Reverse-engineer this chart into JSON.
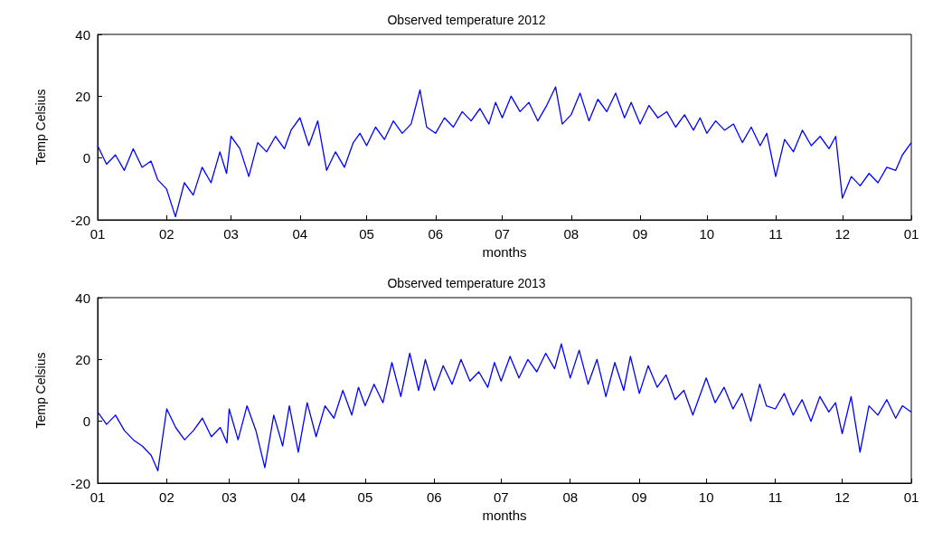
{
  "chart_data": [
    {
      "type": "line",
      "title": "Observed temperature 2012",
      "xlabel": "months",
      "ylabel": "Temp Celsius",
      "color": "#0000ff",
      "grid": false,
      "x": [
        "2012-01-01",
        "2012-01-05",
        "2012-01-09",
        "2012-01-13",
        "2012-01-17",
        "2012-01-21",
        "2012-01-25",
        "2012-01-28",
        "2012-02-01",
        "2012-02-05",
        "2012-02-09",
        "2012-02-13",
        "2012-02-17",
        "2012-02-21",
        "2012-02-25",
        "2012-02-28",
        "2012-03-01",
        "2012-03-05",
        "2012-03-09",
        "2012-03-13",
        "2012-03-17",
        "2012-03-21",
        "2012-03-25",
        "2012-03-28",
        "2012-04-01",
        "2012-04-05",
        "2012-04-09",
        "2012-04-13",
        "2012-04-17",
        "2012-04-21",
        "2012-04-25",
        "2012-04-28",
        "2012-05-01",
        "2012-05-05",
        "2012-05-09",
        "2012-05-13",
        "2012-05-17",
        "2012-05-21",
        "2012-05-25",
        "2012-05-28",
        "2012-06-01",
        "2012-06-05",
        "2012-06-09",
        "2012-06-13",
        "2012-06-17",
        "2012-06-21",
        "2012-06-25",
        "2012-06-28",
        "2012-07-01",
        "2012-07-05",
        "2012-07-09",
        "2012-07-13",
        "2012-07-17",
        "2012-07-21",
        "2012-07-25",
        "2012-07-28",
        "2012-08-01",
        "2012-08-05",
        "2012-08-09",
        "2012-08-13",
        "2012-08-17",
        "2012-08-21",
        "2012-08-25",
        "2012-08-28",
        "2012-09-01",
        "2012-09-05",
        "2012-09-09",
        "2012-09-13",
        "2012-09-17",
        "2012-09-21",
        "2012-09-25",
        "2012-09-28",
        "2012-10-01",
        "2012-10-05",
        "2012-10-09",
        "2012-10-13",
        "2012-10-17",
        "2012-10-21",
        "2012-10-25",
        "2012-10-28",
        "2012-11-01",
        "2012-11-05",
        "2012-11-09",
        "2012-11-13",
        "2012-11-17",
        "2012-11-21",
        "2012-11-25",
        "2012-11-28",
        "2012-12-01",
        "2012-12-05",
        "2012-12-09",
        "2012-12-13",
        "2012-12-17",
        "2012-12-21",
        "2012-12-25",
        "2012-12-28",
        "2013-01-01"
      ],
      "values": [
        4,
        -2,
        1,
        -4,
        3,
        -3,
        -1,
        -7,
        -10,
        -19,
        -8,
        -12,
        -3,
        -8,
        2,
        -5,
        7,
        3,
        -6,
        5,
        2,
        7,
        3,
        9,
        13,
        4,
        12,
        -4,
        2,
        -3,
        5,
        8,
        4,
        10,
        6,
        12,
        8,
        11,
        22,
        10,
        8,
        13,
        10,
        15,
        12,
        16,
        11,
        18,
        13,
        20,
        15,
        18,
        12,
        17,
        23,
        11,
        14,
        21,
        12,
        19,
        15,
        21,
        13,
        18,
        11,
        17,
        13,
        15,
        10,
        14,
        9,
        13,
        8,
        12,
        9,
        11,
        5,
        10,
        4,
        8,
        -6,
        6,
        2,
        9,
        4,
        7,
        3,
        7,
        -13,
        -6,
        -9,
        -5,
        -8,
        -3,
        -4,
        1,
        5
      ],
      "xlim": [
        "2012-01-01",
        "2013-01-01"
      ],
      "xticks": [
        {
          "value": "2012-01-01",
          "label": "01"
        },
        {
          "value": "2012-02-01",
          "label": "02"
        },
        {
          "value": "2012-03-01",
          "label": "03"
        },
        {
          "value": "2012-04-01",
          "label": "04"
        },
        {
          "value": "2012-05-01",
          "label": "05"
        },
        {
          "value": "2012-06-01",
          "label": "06"
        },
        {
          "value": "2012-07-01",
          "label": "07"
        },
        {
          "value": "2012-08-01",
          "label": "08"
        },
        {
          "value": "2012-09-01",
          "label": "09"
        },
        {
          "value": "2012-10-01",
          "label": "10"
        },
        {
          "value": "2012-11-01",
          "label": "11"
        },
        {
          "value": "2012-12-01",
          "label": "12"
        },
        {
          "value": "2013-01-01",
          "label": "01"
        }
      ],
      "ylim": [
        -20,
        40
      ],
      "yticks": [
        -20,
        0,
        20,
        40
      ]
    },
    {
      "type": "line",
      "title": "Observed temperature 2013",
      "xlabel": "months",
      "ylabel": "Temp Celsius",
      "color": "#0000ff",
      "grid": false,
      "x": [
        "2013-01-01",
        "2013-01-05",
        "2013-01-09",
        "2013-01-13",
        "2013-01-17",
        "2013-01-21",
        "2013-01-25",
        "2013-01-28",
        "2013-02-01",
        "2013-02-05",
        "2013-02-09",
        "2013-02-13",
        "2013-02-17",
        "2013-02-21",
        "2013-02-25",
        "2013-02-28",
        "2013-03-01",
        "2013-03-05",
        "2013-03-09",
        "2013-03-13",
        "2013-03-17",
        "2013-03-21",
        "2013-03-25",
        "2013-03-28",
        "2013-04-01",
        "2013-04-05",
        "2013-04-09",
        "2013-04-13",
        "2013-04-17",
        "2013-04-21",
        "2013-04-25",
        "2013-04-28",
        "2013-05-01",
        "2013-05-05",
        "2013-05-09",
        "2013-05-13",
        "2013-05-17",
        "2013-05-21",
        "2013-05-25",
        "2013-05-28",
        "2013-06-01",
        "2013-06-05",
        "2013-06-09",
        "2013-06-13",
        "2013-06-17",
        "2013-06-21",
        "2013-06-25",
        "2013-06-28",
        "2013-07-01",
        "2013-07-05",
        "2013-07-09",
        "2013-07-13",
        "2013-07-17",
        "2013-07-21",
        "2013-07-25",
        "2013-07-28",
        "2013-08-01",
        "2013-08-05",
        "2013-08-09",
        "2013-08-13",
        "2013-08-17",
        "2013-08-21",
        "2013-08-25",
        "2013-08-28",
        "2013-09-01",
        "2013-09-05",
        "2013-09-09",
        "2013-09-13",
        "2013-09-17",
        "2013-09-21",
        "2013-09-25",
        "2013-09-28",
        "2013-10-01",
        "2013-10-05",
        "2013-10-09",
        "2013-10-13",
        "2013-10-17",
        "2013-10-21",
        "2013-10-25",
        "2013-10-28",
        "2013-11-01",
        "2013-11-05",
        "2013-11-09",
        "2013-11-13",
        "2013-11-17",
        "2013-11-21",
        "2013-11-25",
        "2013-11-28",
        "2013-12-01",
        "2013-12-05",
        "2013-12-09",
        "2013-12-13",
        "2013-12-17",
        "2013-12-21",
        "2013-12-25",
        "2013-12-28",
        "2014-01-01"
      ],
      "values": [
        3,
        -1,
        2,
        -3,
        -6,
        -8,
        -11,
        -16,
        4,
        -2,
        -6,
        -3,
        1,
        -5,
        -2,
        -7,
        4,
        -6,
        5,
        -3,
        -15,
        2,
        -8,
        5,
        -10,
        6,
        -5,
        5,
        1,
        10,
        2,
        11,
        5,
        12,
        6,
        19,
        8,
        22,
        10,
        20,
        10,
        18,
        12,
        20,
        13,
        16,
        11,
        19,
        13,
        21,
        14,
        20,
        16,
        22,
        17,
        25,
        14,
        23,
        12,
        20,
        8,
        19,
        10,
        21,
        9,
        18,
        11,
        15,
        7,
        10,
        2,
        8,
        14,
        6,
        11,
        4,
        9,
        0,
        12,
        5,
        4,
        9,
        2,
        7,
        0,
        8,
        3,
        6,
        -4,
        8,
        -10,
        5,
        2,
        7,
        1,
        5,
        3
      ],
      "xlim": [
        "2013-01-01",
        "2014-01-01"
      ],
      "xticks": [
        {
          "value": "2013-01-01",
          "label": "01"
        },
        {
          "value": "2013-02-01",
          "label": "02"
        },
        {
          "value": "2013-03-01",
          "label": "03"
        },
        {
          "value": "2013-04-01",
          "label": "04"
        },
        {
          "value": "2013-05-01",
          "label": "05"
        },
        {
          "value": "2013-06-01",
          "label": "06"
        },
        {
          "value": "2013-07-01",
          "label": "07"
        },
        {
          "value": "2013-08-01",
          "label": "08"
        },
        {
          "value": "2013-09-01",
          "label": "09"
        },
        {
          "value": "2013-10-01",
          "label": "10"
        },
        {
          "value": "2013-11-01",
          "label": "11"
        },
        {
          "value": "2013-12-01",
          "label": "12"
        },
        {
          "value": "2014-01-01",
          "label": "01"
        }
      ],
      "ylim": [
        -20,
        40
      ],
      "yticks": [
        -20,
        0,
        20,
        40
      ]
    }
  ]
}
